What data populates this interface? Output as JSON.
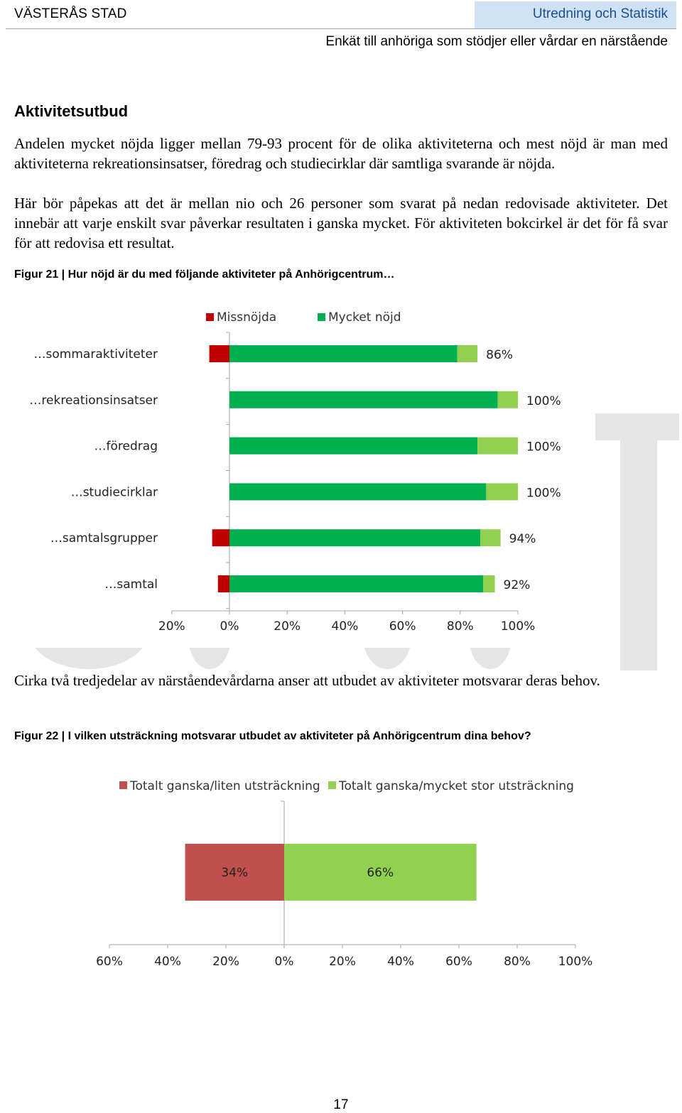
{
  "header": {
    "org": "VÄSTERÅS STAD",
    "dept": "Utredning och Statistik",
    "report_title": "Enkät till anhöriga som stödjer eller vårdar en närstående"
  },
  "section": {
    "heading": "Aktivitetsutbud",
    "paragraph1": "Andelen mycket nöjda ligger mellan 79-93 procent för de olika aktiviteterna och mest nöjd är man med aktiviteterna rekreationsinsatser, föredrag och studiecirklar där samtliga svarande är nöjda.",
    "paragraph2": "Här bör påpekas att det är mellan nio och 26 personer som svarat på nedan redovisade aktiviteter. Det innebär att varje enskilt svar påverkar resultaten i ganska mycket. För aktiviteten bokcirkel är det för få svar för att redovisa ett resultat.",
    "paragraph3": "Cirka två tredjedelar av närståendevårdarna anser att utbudet av aktiviteter motsvarar deras behov."
  },
  "figures": {
    "fig21_title": "Figur 21 | Hur nöjd är du med följande aktiviteter på Anhörigcentrum…",
    "fig22_title": "Figur 22 | I vilken utsträckning motsvarar utbudet av aktiviteter på Anhörigcentrum dina behov?"
  },
  "chart_data": [
    {
      "type": "bar",
      "orientation": "horizontal-diverging",
      "title": "Figur 21 | Hur nöjd är du med följande aktiviteter på Anhörigcentrum…",
      "categories": [
        "…sommaraktiviteter",
        "…rekreationsinsatser",
        "…föredrag",
        "…studiecirklar",
        "…samtalsgrupper",
        "…samtal"
      ],
      "series": [
        {
          "name": "Missnöjda",
          "color": "#c00000",
          "values": [
            -7,
            0,
            0,
            0,
            -6,
            -4
          ]
        },
        {
          "name": "Mycket nöjd",
          "color": "#00b050",
          "values": [
            79,
            93,
            86,
            89,
            87,
            88
          ]
        },
        {
          "color": "#92d050",
          "values": [
            7,
            7,
            14,
            11,
            7,
            4
          ]
        }
      ],
      "total_labels": [
        "86%",
        "100%",
        "100%",
        "100%",
        "94%",
        "92%"
      ],
      "x_ticks": [
        "20%",
        "0%",
        "20%",
        "40%",
        "60%",
        "80%",
        "100%"
      ],
      "xlim": [
        -20,
        100
      ],
      "legend": "top"
    },
    {
      "type": "bar",
      "orientation": "horizontal-diverging",
      "title": "Figur 22 | I vilken utsträckning motsvarar utbudet av aktiviteter på Anhörigcentrum dina behov?",
      "categories": [
        ""
      ],
      "series": [
        {
          "name": "Totalt ganska/liten utsträckning",
          "color": "#c0504d",
          "values": [
            -34
          ],
          "label": "34%"
        },
        {
          "name": "Totalt ganska/mycket stor utsträckning",
          "color": "#92d050",
          "values": [
            66
          ],
          "label": "66%"
        }
      ],
      "x_ticks": [
        "60%",
        "40%",
        "20%",
        "0%",
        "20%",
        "40%",
        "60%",
        "80%",
        "100%"
      ],
      "xlim": [
        -60,
        100
      ],
      "legend": "top"
    }
  ],
  "page_number": "17"
}
